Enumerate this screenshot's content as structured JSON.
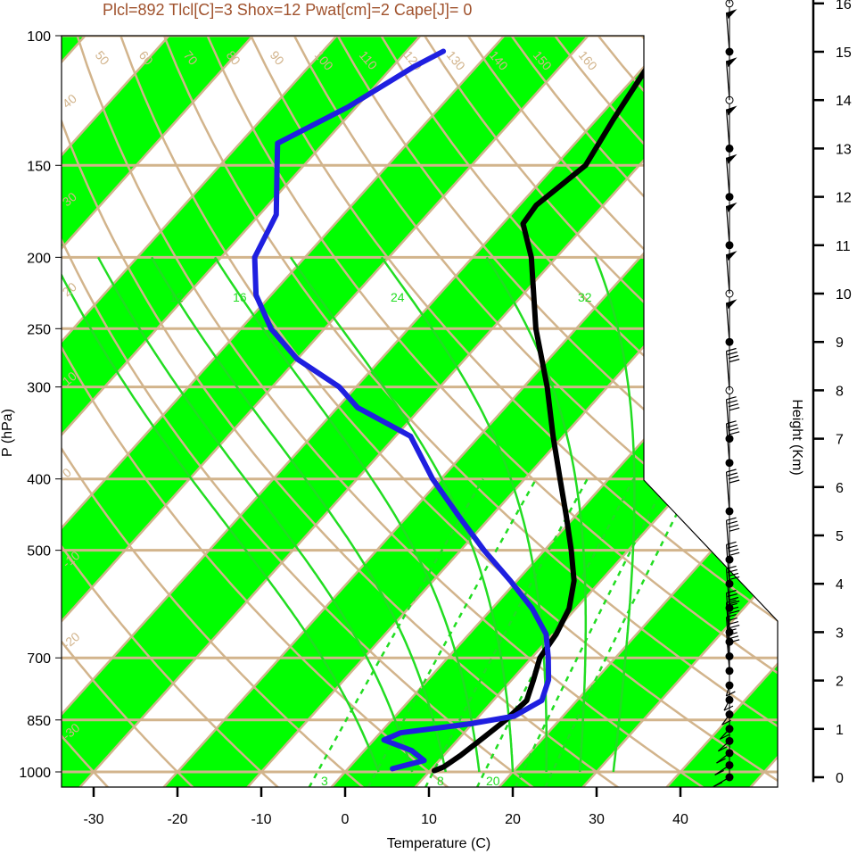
{
  "chart_data": {
    "type": "line",
    "title": "Plcl=892 Tlcl[C]=3 Shox=12 Pwat[cm]=2 Cape[J]= 0",
    "xlabel": "Temperature (C)",
    "ylabel": "P (hPa)",
    "ylabel_right": "Height (Km)",
    "x_ticks": [
      "-30",
      "-20",
      "-10",
      "0",
      "10",
      "20",
      "30",
      "40"
    ],
    "p_ticks": [
      {
        "p": 100,
        "label": "100"
      },
      {
        "p": 150,
        "label": "150"
      },
      {
        "p": 200,
        "label": "200"
      },
      {
        "p": 250,
        "label": "250"
      },
      {
        "p": 300,
        "label": "300"
      },
      {
        "p": 400,
        "label": "400"
      },
      {
        "p": 500,
        "label": "500"
      },
      {
        "p": 700,
        "label": "700"
      },
      {
        "p": 850,
        "label": "850"
      },
      {
        "p": 1000,
        "label": "1000"
      }
    ],
    "height_ticks": [
      "0",
      "1",
      "2",
      "3",
      "4",
      "5",
      "6",
      "7",
      "8",
      "9",
      "10",
      "11",
      "12",
      "13",
      "14",
      "15",
      "16"
    ],
    "colors": {
      "temperature": "#000000",
      "dewpoint": "#1f1fe0",
      "isotherm_band": "#00ff00",
      "dry_adiabat": "#d2b48c",
      "moist_adiabat": "#22dd22",
      "mixing_ratio": "#22dd22",
      "title": "#a0522d"
    },
    "dry_adiabat_labels": [
      "50",
      "60",
      "70",
      "80",
      "90",
      "100",
      "110",
      "120",
      "130",
      "140",
      "150",
      "160"
    ],
    "isotherm_edge_labels": [
      "40",
      "30",
      "20",
      "10",
      "0",
      "-10",
      "-20",
      "-30",
      "30",
      "20",
      "10",
      "0",
      "10",
      "20",
      "30"
    ],
    "moist_adiabat_labels": [
      "12",
      "16",
      "24",
      "32"
    ],
    "mixing_ratio_labels": [
      "3",
      "8",
      "20"
    ],
    "series": [
      {
        "name": "Temperature",
        "points": [
          [
            996,
            10.5
          ],
          [
            985,
            11.2
          ],
          [
            950,
            12.0
          ],
          [
            900,
            12.8
          ],
          [
            850,
            13.6
          ],
          [
            800,
            14.0
          ],
          [
            750,
            12.6
          ],
          [
            700,
            11.0
          ],
          [
            650,
            10.4
          ],
          [
            600,
            9.2
          ],
          [
            550,
            6.8
          ],
          [
            500,
            3.2
          ],
          [
            450,
            -1.0
          ],
          [
            400,
            -5.8
          ],
          [
            350,
            -11.2
          ],
          [
            300,
            -17.2
          ],
          [
            250,
            -24.8
          ],
          [
            200,
            -33.0
          ],
          [
            180,
            -37.6
          ],
          [
            170,
            -38.0
          ],
          [
            150,
            -36.4
          ],
          [
            130,
            -38.0
          ],
          [
            110,
            -39.6
          ],
          [
            105,
            -41.2
          ]
        ]
      },
      {
        "name": "Dewpoint",
        "points": [
          [
            990,
            5.3
          ],
          [
            965,
            8.2
          ],
          [
            935,
            5.6
          ],
          [
            905,
            1.2
          ],
          [
            885,
            2.4
          ],
          [
            860,
            9.8
          ],
          [
            840,
            14.2
          ],
          [
            800,
            15.8
          ],
          [
            750,
            14.4
          ],
          [
            700,
            12.0
          ],
          [
            650,
            9.2
          ],
          [
            600,
            4.8
          ],
          [
            550,
            -0.8
          ],
          [
            500,
            -7.2
          ],
          [
            450,
            -13.8
          ],
          [
            400,
            -21.0
          ],
          [
            350,
            -28.2
          ],
          [
            320,
            -37.6
          ],
          [
            300,
            -42.0
          ],
          [
            275,
            -50.0
          ],
          [
            250,
            -56.4
          ],
          [
            225,
            -61.8
          ],
          [
            200,
            -66.0
          ],
          [
            175,
            -68.0
          ],
          [
            150,
            -73.2
          ],
          [
            140,
            -75.5
          ],
          [
            125,
            -71.0
          ],
          [
            110,
            -67.4
          ],
          [
            105,
            -65.6
          ]
        ]
      }
    ],
    "wind_barb_heights_km": [
      0.0,
      0.25,
      0.5,
      0.75,
      1.0,
      1.3,
      1.6,
      1.9,
      2.2,
      2.5,
      2.8,
      3.0,
      3.5,
      4.0,
      4.5,
      5.5,
      6.5,
      7.0,
      8.0,
      9.0,
      10.0,
      11.0,
      12.0,
      13.0,
      14.0,
      15.0,
      16.0
    ]
  }
}
